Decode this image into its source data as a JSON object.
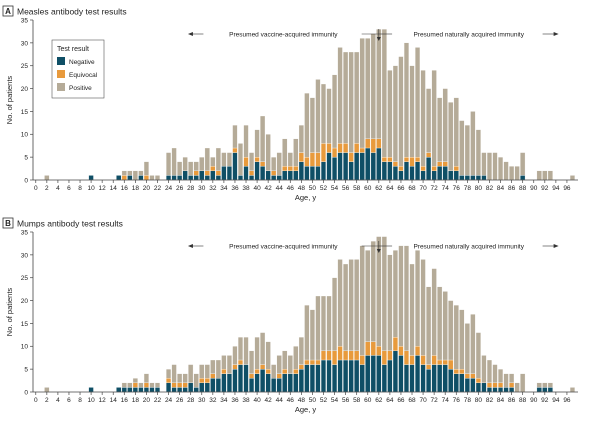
{
  "colors": {
    "negative": "#0f4f66",
    "equivocal": "#e89a3c",
    "positive": "#b5ab98",
    "axis": "#444444",
    "text": "#222222"
  },
  "chart_data": [
    {
      "type": "bar",
      "stacked": true,
      "panel_letter": "A",
      "title": "Measles antibody test results",
      "xlabel": "Age, y",
      "ylabel": "No. of patients",
      "ylim": [
        0,
        35
      ],
      "yticks": [
        0,
        5,
        10,
        15,
        20,
        25,
        30,
        35
      ],
      "xticks": [
        0,
        2,
        4,
        6,
        8,
        10,
        12,
        14,
        16,
        18,
        20,
        22,
        24,
        26,
        28,
        30,
        32,
        34,
        36,
        38,
        40,
        42,
        44,
        46,
        48,
        50,
        52,
        54,
        56,
        58,
        60,
        62,
        64,
        66,
        68,
        70,
        72,
        74,
        76,
        78,
        80,
        82,
        84,
        86,
        88,
        90,
        92,
        94,
        96
      ],
      "legend": {
        "title": "Test result",
        "entries": [
          "Negative",
          "Equivocal",
          "Positive"
        ],
        "placement": "top-left"
      },
      "annotations": {
        "left": "Presumed vaccine-acquired immunity",
        "right": "Presumed naturally acquired immunity",
        "divider_age": 62
      },
      "categories": [
        2,
        10,
        15,
        16,
        17,
        18,
        19,
        20,
        21,
        22,
        24,
        25,
        26,
        27,
        28,
        29,
        30,
        31,
        32,
        33,
        34,
        35,
        36,
        37,
        38,
        39,
        40,
        41,
        42,
        43,
        44,
        45,
        46,
        47,
        48,
        49,
        50,
        51,
        52,
        53,
        54,
        55,
        56,
        57,
        58,
        59,
        60,
        61,
        62,
        63,
        64,
        65,
        66,
        67,
        68,
        69,
        70,
        71,
        72,
        73,
        74,
        75,
        76,
        77,
        78,
        79,
        80,
        81,
        82,
        83,
        84,
        85,
        86,
        87,
        88,
        91,
        92,
        93,
        97
      ],
      "series": [
        {
          "name": "Negative",
          "values": [
            0,
            1,
            1,
            0,
            1,
            0,
            1,
            0,
            0,
            0,
            1,
            1,
            1,
            2,
            1,
            1,
            2,
            1,
            2,
            1,
            3,
            3,
            6,
            1,
            3,
            1,
            4,
            3,
            2,
            1,
            1,
            2,
            2,
            2,
            4,
            3,
            3,
            3,
            4,
            6,
            5,
            6,
            6,
            4,
            6,
            6,
            7,
            6,
            7,
            4,
            4,
            3,
            2,
            4,
            3,
            4,
            2,
            5,
            2,
            3,
            3,
            2,
            2,
            1,
            1,
            1,
            1,
            1,
            0,
            0,
            0,
            0,
            0,
            0,
            1,
            0,
            0,
            0,
            0
          ]
        },
        {
          "name": "Equivocal",
          "values": [
            0,
            0,
            0,
            1,
            0,
            0,
            0,
            1,
            0,
            0,
            0,
            0,
            0,
            0,
            0,
            1,
            0,
            1,
            1,
            1,
            0,
            0,
            1,
            0,
            2,
            1,
            1,
            1,
            0,
            1,
            0,
            1,
            1,
            1,
            2,
            2,
            3,
            3,
            4,
            2,
            2,
            2,
            2,
            2,
            2,
            1,
            2,
            3,
            2,
            1,
            1,
            1,
            1,
            1,
            2,
            1,
            1,
            1,
            1,
            1,
            1,
            0,
            1,
            0,
            0,
            0,
            0,
            0,
            0,
            0,
            0,
            0,
            0,
            0,
            0,
            0,
            0,
            0,
            0
          ]
        },
        {
          "name": "Positive",
          "values": [
            1,
            0,
            0,
            1,
            1,
            2,
            1,
            3,
            1,
            1,
            5,
            6,
            3,
            3,
            3,
            2,
            3,
            5,
            2,
            5,
            3,
            3,
            5,
            7,
            7,
            4,
            6,
            10,
            8,
            3,
            5,
            6,
            3,
            6,
            6,
            14,
            12,
            16,
            13,
            12,
            16,
            21,
            20,
            22,
            20,
            24,
            22,
            23,
            24,
            28,
            19,
            21,
            24,
            25,
            20,
            24,
            21,
            14,
            21,
            14,
            16,
            15,
            15,
            12,
            11,
            14,
            10,
            5,
            6,
            6,
            5,
            4,
            3,
            3,
            5,
            2,
            2,
            2,
            1
          ]
        }
      ]
    },
    {
      "type": "bar",
      "stacked": true,
      "panel_letter": "B",
      "title": "Mumps antibody test results",
      "xlabel": "Age, y",
      "ylabel": "No. of patients",
      "ylim": [
        0,
        35
      ],
      "yticks": [
        0,
        5,
        10,
        15,
        20,
        25,
        30,
        35
      ],
      "xticks": [
        0,
        2,
        4,
        6,
        8,
        10,
        12,
        14,
        16,
        18,
        20,
        22,
        24,
        26,
        28,
        30,
        32,
        34,
        36,
        38,
        40,
        42,
        44,
        46,
        48,
        50,
        52,
        54,
        56,
        58,
        60,
        62,
        64,
        66,
        68,
        70,
        72,
        74,
        76,
        78,
        80,
        82,
        84,
        86,
        88,
        90,
        92,
        94,
        96
      ],
      "annotations": {
        "left": "Presumed vaccine-acquired immunity",
        "right": "Presumed naturally acquired immunity",
        "divider_age": 62
      },
      "categories": [
        2,
        10,
        15,
        16,
        17,
        18,
        19,
        20,
        21,
        22,
        24,
        25,
        26,
        27,
        28,
        29,
        30,
        31,
        32,
        33,
        34,
        35,
        36,
        37,
        38,
        39,
        40,
        41,
        42,
        43,
        44,
        45,
        46,
        47,
        48,
        49,
        50,
        51,
        52,
        53,
        54,
        55,
        56,
        57,
        58,
        59,
        60,
        61,
        62,
        63,
        64,
        65,
        66,
        67,
        68,
        69,
        70,
        71,
        72,
        73,
        74,
        75,
        76,
        77,
        78,
        79,
        80,
        81,
        82,
        83,
        84,
        85,
        86,
        87,
        88,
        91,
        92,
        93,
        97
      ],
      "series": [
        {
          "name": "Negative",
          "values": [
            0,
            1,
            1,
            1,
            1,
            1,
            1,
            1,
            1,
            1,
            2,
            1,
            1,
            1,
            2,
            1,
            2,
            2,
            3,
            3,
            4,
            4,
            5,
            6,
            6,
            3,
            4,
            5,
            4,
            3,
            3,
            4,
            4,
            4,
            5,
            6,
            6,
            6,
            7,
            7,
            6,
            7,
            7,
            7,
            7,
            6,
            8,
            8,
            8,
            6,
            7,
            9,
            8,
            6,
            6,
            8,
            6,
            5,
            6,
            6,
            6,
            5,
            4,
            4,
            3,
            3,
            2,
            2,
            1,
            1,
            1,
            1,
            1,
            0,
            0,
            1,
            1,
            1,
            0
          ]
        },
        {
          "name": "Equivocal",
          "values": [
            0,
            0,
            0,
            0,
            0,
            1,
            0,
            1,
            0,
            0,
            1,
            1,
            1,
            1,
            0,
            0,
            1,
            1,
            1,
            0,
            1,
            0,
            1,
            1,
            0,
            1,
            1,
            1,
            1,
            0,
            1,
            1,
            0,
            1,
            1,
            1,
            1,
            1,
            2,
            2,
            3,
            3,
            2,
            2,
            2,
            2,
            3,
            3,
            2,
            3,
            2,
            3,
            2,
            3,
            2,
            2,
            2,
            1,
            2,
            1,
            1,
            2,
            1,
            1,
            1,
            1,
            1,
            0,
            1,
            1,
            1,
            0,
            1,
            0,
            0,
            0,
            0,
            0,
            0
          ]
        },
        {
          "name": "Positive",
          "values": [
            1,
            0,
            0,
            1,
            1,
            1,
            1,
            2,
            1,
            1,
            2,
            4,
            2,
            2,
            4,
            3,
            3,
            3,
            3,
            4,
            3,
            4,
            4,
            5,
            6,
            5,
            7,
            7,
            6,
            3,
            4,
            4,
            4,
            5,
            6,
            12,
            11,
            14,
            12,
            12,
            16,
            19,
            19,
            20,
            20,
            24,
            20,
            22,
            24,
            25,
            21,
            19,
            22,
            23,
            20,
            21,
            21,
            17,
            19,
            16,
            15,
            13,
            14,
            13,
            11,
            13,
            10,
            6,
            5,
            4,
            3,
            3,
            2,
            2,
            4,
            1,
            1,
            1,
            1
          ]
        }
      ]
    }
  ]
}
